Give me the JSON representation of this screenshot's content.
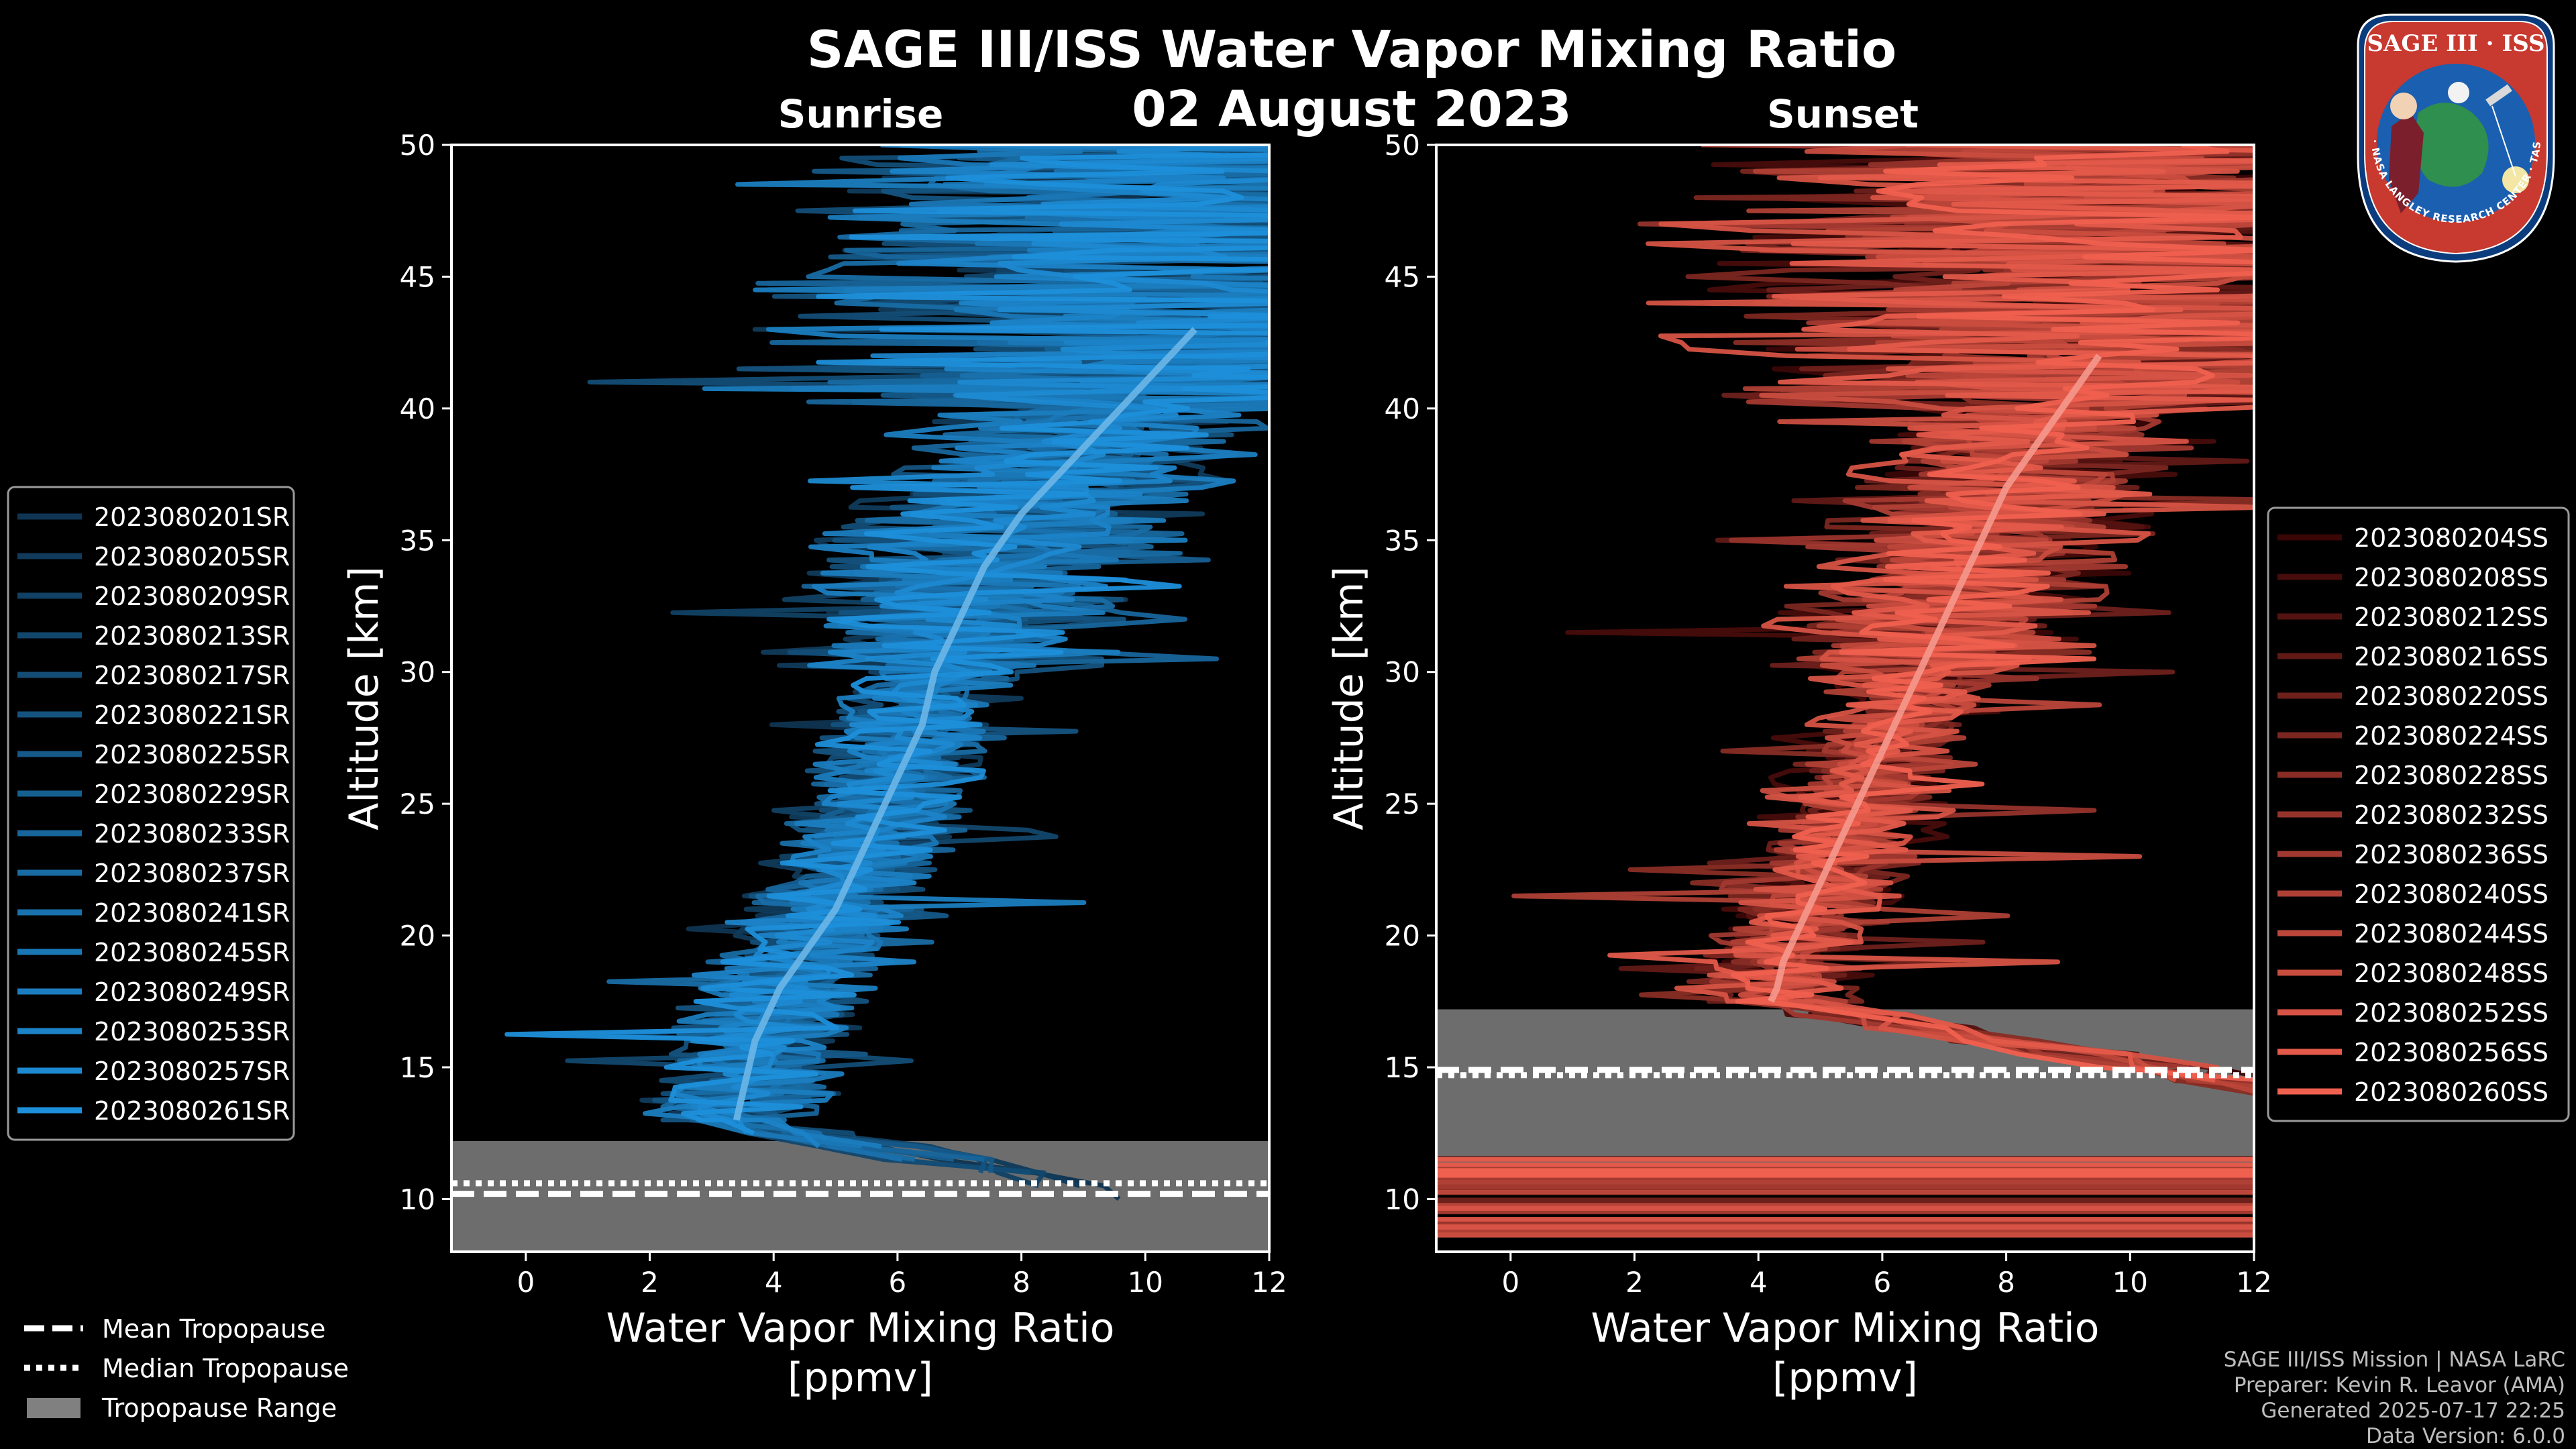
{
  "title": "SAGE III/ISS Water Vapor Mixing Ratio",
  "date": "02 August 2023",
  "colors": {
    "sunrise": "#1e8fda",
    "sunset": "#f0604f",
    "range": "#808080",
    "background": "#000000"
  },
  "chart_data": [
    {
      "type": "line",
      "title": "Sunrise",
      "xlabel": "Water Vapor Mixing Ratio\n[ppmv]",
      "ylabel": "Altitude [km]",
      "xlim": [
        -1.2,
        12
      ],
      "ylim": [
        8,
        50
      ],
      "xticks": [
        0,
        2,
        4,
        6,
        8,
        10,
        12
      ],
      "yticks": [
        10,
        15,
        20,
        25,
        30,
        35,
        40,
        45,
        50
      ],
      "legend_position": "left",
      "tropopause": {
        "mean": 10.2,
        "median": 10.6,
        "range": [
          8,
          12.2
        ]
      },
      "series": [
        {
          "name": "2023080201SR"
        },
        {
          "name": "2023080205SR"
        },
        {
          "name": "2023080209SR"
        },
        {
          "name": "2023080213SR"
        },
        {
          "name": "2023080217SR"
        },
        {
          "name": "2023080221SR"
        },
        {
          "name": "2023080225SR"
        },
        {
          "name": "2023080229SR"
        },
        {
          "name": "2023080233SR"
        },
        {
          "name": "2023080237SR"
        },
        {
          "name": "2023080241SR"
        },
        {
          "name": "2023080245SR"
        },
        {
          "name": "2023080249SR"
        },
        {
          "name": "2023080253SR"
        },
        {
          "name": "2023080257SR"
        },
        {
          "name": "2023080261SR"
        }
      ],
      "mean_profile": [
        [
          13.0,
          3.4
        ],
        [
          14,
          3.5
        ],
        [
          15,
          3.6
        ],
        [
          16,
          3.7
        ],
        [
          17,
          3.9
        ],
        [
          18,
          4.1
        ],
        [
          19,
          4.4
        ],
        [
          20,
          4.7
        ],
        [
          21,
          5.0
        ],
        [
          22,
          5.2
        ],
        [
          23,
          5.4
        ],
        [
          24,
          5.6
        ],
        [
          25,
          5.8
        ],
        [
          26,
          6.0
        ],
        [
          27,
          6.2
        ],
        [
          28,
          6.4
        ],
        [
          29,
          6.5
        ],
        [
          30,
          6.6
        ],
        [
          31,
          6.8
        ],
        [
          32,
          7.0
        ],
        [
          33,
          7.2
        ],
        [
          34,
          7.4
        ],
        [
          35,
          7.7
        ],
        [
          36,
          8.0
        ],
        [
          37,
          8.4
        ],
        [
          38,
          8.8
        ],
        [
          39,
          9.2
        ],
        [
          40,
          9.6
        ],
        [
          41,
          10.0
        ],
        [
          42,
          10.4
        ],
        [
          43,
          10.8
        ]
      ]
    },
    {
      "type": "line",
      "title": "Sunset",
      "xlabel": "Water Vapor Mixing Ratio\n[ppmv]",
      "ylabel": "Altitude [km]",
      "xlim": [
        -1.2,
        12
      ],
      "ylim": [
        8,
        50
      ],
      "xticks": [
        0,
        2,
        4,
        6,
        8,
        10,
        12
      ],
      "yticks": [
        10,
        15,
        20,
        25,
        30,
        35,
        40,
        45,
        50
      ],
      "legend_position": "right",
      "tropopause": {
        "mean": 14.9,
        "median": 14.7,
        "range": [
          11.3,
          17.2
        ]
      },
      "series": [
        {
          "name": "2023080204SS"
        },
        {
          "name": "2023080208SS"
        },
        {
          "name": "2023080212SS"
        },
        {
          "name": "2023080216SS"
        },
        {
          "name": "2023080220SS"
        },
        {
          "name": "2023080224SS"
        },
        {
          "name": "2023080228SS"
        },
        {
          "name": "2023080232SS"
        },
        {
          "name": "2023080236SS"
        },
        {
          "name": "2023080240SS"
        },
        {
          "name": "2023080244SS"
        },
        {
          "name": "2023080248SS"
        },
        {
          "name": "2023080252SS"
        },
        {
          "name": "2023080256SS"
        },
        {
          "name": "2023080260SS"
        }
      ],
      "mean_profile": [
        [
          17.5,
          4.2
        ],
        [
          18,
          4.3
        ],
        [
          19,
          4.4
        ],
        [
          20,
          4.6
        ],
        [
          21,
          4.8
        ],
        [
          22,
          5.0
        ],
        [
          23,
          5.2
        ],
        [
          24,
          5.4
        ],
        [
          25,
          5.6
        ],
        [
          26,
          5.8
        ],
        [
          27,
          6.0
        ],
        [
          28,
          6.2
        ],
        [
          29,
          6.4
        ],
        [
          30,
          6.6
        ],
        [
          31,
          6.8
        ],
        [
          32,
          7.0
        ],
        [
          33,
          7.2
        ],
        [
          34,
          7.4
        ],
        [
          35,
          7.6
        ],
        [
          36,
          7.8
        ],
        [
          37,
          8.0
        ],
        [
          38,
          8.3
        ],
        [
          39,
          8.6
        ],
        [
          40,
          8.9
        ],
        [
          41,
          9.2
        ],
        [
          42,
          9.5
        ]
      ]
    }
  ],
  "legend_common": [
    "Mean Tropopause",
    "Median Tropopause",
    "Tropopause Range"
  ],
  "logo": {
    "top_text": "SAGE III · ISS",
    "ring_text": "BALL · NASA LANGLEY RESEARCH CENTER · TAS · ESA"
  },
  "credits": [
    "SAGE III/ISS Mission | NASA LaRC",
    "Preparer: Kevin R. Leavor (AMA)",
    "Generated 2025-07-17 22:25",
    "Data Version: 6.0.0"
  ]
}
